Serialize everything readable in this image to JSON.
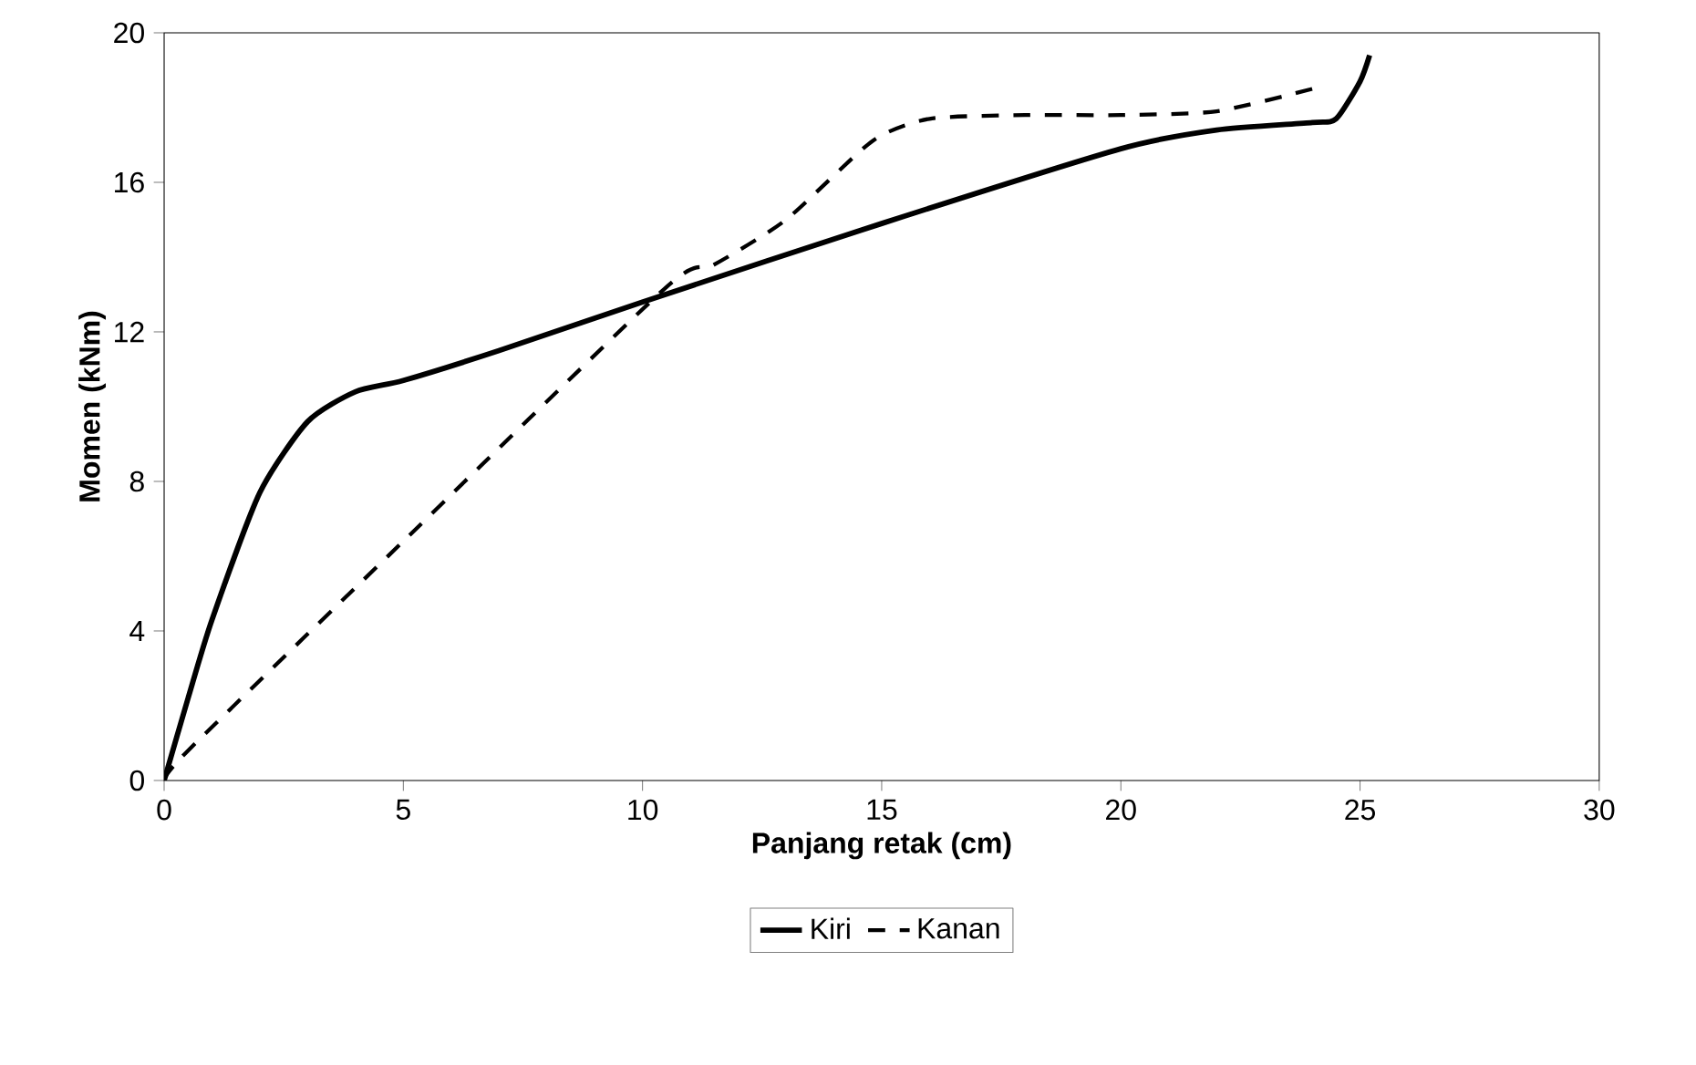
{
  "chart_data": {
    "type": "line",
    "xlabel": "Panjang retak (cm)",
    "ylabel": "Momen (kNm)",
    "xlim": [
      0,
      30
    ],
    "ylim": [
      0,
      20
    ],
    "xticks": [
      0,
      5,
      10,
      15,
      20,
      25,
      30
    ],
    "yticks": [
      0,
      4,
      8,
      12,
      16,
      20
    ],
    "legend": "bottom",
    "marker": "none",
    "series": [
      {
        "name": "Kiri",
        "color": "#000000",
        "line_style": "solid",
        "x": [
          0,
          0.5,
          1,
          2,
          3,
          4,
          5,
          7,
          10,
          15,
          20,
          22,
          24,
          24.5,
          25,
          25.2
        ],
        "values": [
          0,
          2.2,
          4.3,
          7.7,
          9.6,
          10.4,
          10.7,
          11.5,
          12.8,
          14.9,
          16.9,
          17.4,
          17.6,
          17.7,
          18.7,
          19.4
        ]
      },
      {
        "name": "Kanan",
        "color": "#000000",
        "line_style": "dashed",
        "x": [
          0,
          0.5,
          5,
          10.5,
          11.5,
          13,
          14.8,
          16,
          18,
          20,
          22,
          24
        ],
        "values": [
          0,
          0.8,
          6.4,
          13.2,
          13.8,
          15,
          17.1,
          17.7,
          17.8,
          17.8,
          17.9,
          18.5
        ]
      }
    ]
  }
}
